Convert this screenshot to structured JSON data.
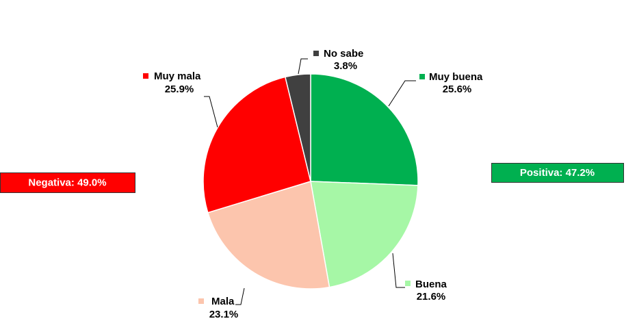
{
  "chart_data": {
    "type": "pie",
    "categories": [
      "Muy buena",
      "Buena",
      "Mala",
      "Muy mala",
      "No sabe"
    ],
    "values": [
      25.6,
      21.6,
      23.1,
      25.9,
      3.8
    ],
    "value_labels": [
      "25.6%",
      "21.6%",
      "23.1%",
      "25.9%",
      "3.8%"
    ],
    "colors": [
      "#00b050",
      "#a6f7a6",
      "#fcc5ad",
      "#ff0000",
      "#404040"
    ],
    "annotations": [
      {
        "text": "Negativa: 49.0%",
        "color": "#ff0000"
      },
      {
        "text": "Positiva: 47.2%",
        "color": "#00b050"
      }
    ]
  }
}
